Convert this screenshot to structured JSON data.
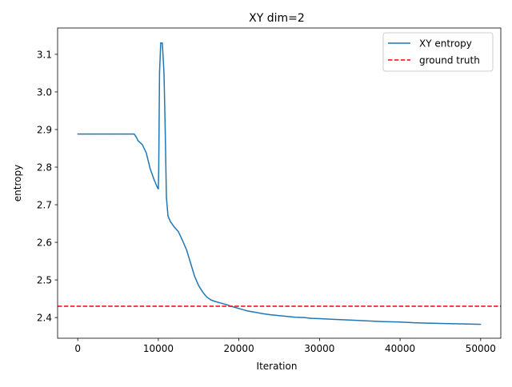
{
  "chart_data": {
    "type": "line",
    "title": "XY dim=2",
    "xlabel": "Iteration",
    "ylabel": "entropy",
    "xlim": [
      -2500,
      52500
    ],
    "ylim": [
      2.345,
      3.17
    ],
    "xticks": [
      0,
      10000,
      20000,
      30000,
      40000,
      50000
    ],
    "xtick_labels": [
      "0",
      "10000",
      "20000",
      "30000",
      "40000",
      "50000"
    ],
    "yticks": [
      2.4,
      2.5,
      2.6,
      2.7,
      2.8,
      2.9,
      3.0,
      3.1
    ],
    "ytick_labels": [
      "2.4",
      "2.5",
      "2.6",
      "2.7",
      "2.8",
      "2.9",
      "3.0",
      "3.1"
    ],
    "grid": false,
    "legend_position": "top-right",
    "series": [
      {
        "name": "XY entropy",
        "color": "#1f77b4",
        "style": "solid",
        "x": [
          0,
          2000,
          4000,
          6000,
          7000,
          7200,
          7500,
          8000,
          8500,
          9000,
          9500,
          9900,
          10000,
          10050,
          10150,
          10300,
          10500,
          10700,
          10850,
          11000,
          11200,
          11500,
          12000,
          12500,
          13000,
          13500,
          14000,
          14500,
          15000,
          15500,
          16000,
          16500,
          17000,
          17500,
          18000,
          18500,
          19000,
          19500,
          20000,
          21000,
          22000,
          23000,
          24000,
          25000,
          26000,
          27000,
          28000,
          29000,
          30000,
          32000,
          34000,
          36000,
          38000,
          40000,
          42000,
          44000,
          46000,
          48000,
          50000
        ],
        "y": [
          2.888,
          2.888,
          2.888,
          2.888,
          2.888,
          2.882,
          2.87,
          2.86,
          2.838,
          2.795,
          2.765,
          2.745,
          2.742,
          2.79,
          3.05,
          3.13,
          3.13,
          3.05,
          2.9,
          2.72,
          2.67,
          2.655,
          2.64,
          2.628,
          2.605,
          2.58,
          2.545,
          2.51,
          2.485,
          2.468,
          2.455,
          2.447,
          2.443,
          2.44,
          2.437,
          2.434,
          2.43,
          2.427,
          2.424,
          2.418,
          2.414,
          2.41,
          2.407,
          2.405,
          2.403,
          2.401,
          2.4,
          2.398,
          2.397,
          2.395,
          2.393,
          2.391,
          2.389,
          2.388,
          2.386,
          2.385,
          2.384,
          2.383,
          2.382
        ]
      },
      {
        "name": "ground truth",
        "color": "#ff0000",
        "style": "dashed",
        "y_constant": 2.43
      }
    ]
  }
}
